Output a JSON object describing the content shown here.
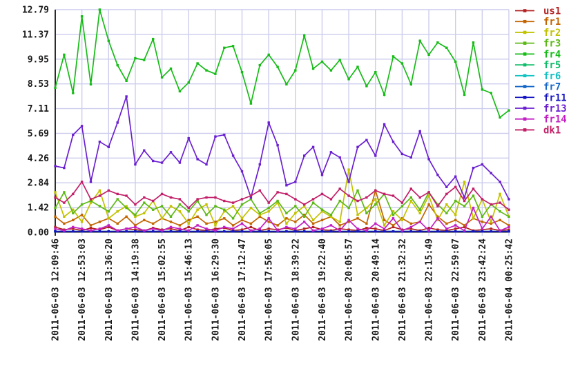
{
  "chart_data": {
    "type": "line",
    "title": "",
    "xlabel": "",
    "ylabel": "",
    "ylim": [
      0,
      12.79
    ],
    "grid": true,
    "legend_position": "right-outside",
    "points_per_series": 52,
    "y_tick_labels": [
      "0.00",
      "1.42",
      "2.84",
      "4.26",
      "5.69",
      "7.11",
      "8.53",
      "9.95",
      "11.37",
      "12.79"
    ],
    "x_labels": [
      "2011-06-03 12:09:46",
      "2011-06-03 12:53:03",
      "2011-06-03 13:36:20",
      "2011-06-03 14:19:38",
      "2011-06-03 15:02:55",
      "2011-06-03 15:46:13",
      "2011-06-03 16:29:30",
      "2011-06-03 17:12:47",
      "2011-06-03 17:56:05",
      "2011-06-03 18:39:22",
      "2011-06-03 19:22:40",
      "2011-06-03 20:05:57",
      "2011-06-03 20:49:14",
      "2011-06-03 21:32:32",
      "2011-06-03 22:15:49",
      "2011-06-03 22:59:07",
      "2011-06-03 23:42:24",
      "2011-06-04 00:25:42"
    ],
    "series": [
      {
        "name": "us1",
        "color": "#b22222",
        "values": [
          0.3,
          0.15,
          0.2,
          0.1,
          0.25,
          0.15,
          0.3,
          0.1,
          0.2,
          0.15,
          0.1,
          0.25,
          0.15,
          0.2,
          0.1,
          0.3,
          0.15,
          0.1,
          0.2,
          0.25,
          0.1,
          0.15,
          0.3,
          0.1,
          0.2,
          0.15,
          0.25,
          0.1,
          0.2,
          0.3,
          0.15,
          0.1,
          0.2,
          0.15,
          0.1,
          0.25,
          0.2,
          0.1,
          0.3,
          0.15,
          0.2,
          0.1,
          0.25,
          0.15,
          0.1,
          0.2,
          0.3,
          0.1,
          0.15,
          0.2,
          0.1,
          0.15
        ]
      },
      {
        "name": "fr1",
        "color": "#c26400",
        "values": [
          0.9,
          0.5,
          0.7,
          1.0,
          0.4,
          0.6,
          0.8,
          0.5,
          0.9,
          0.4,
          0.7,
          0.5,
          0.8,
          0.6,
          0.4,
          0.7,
          0.9,
          0.5,
          0.6,
          0.8,
          0.4,
          0.7,
          0.5,
          0.9,
          0.6,
          0.4,
          0.8,
          0.6,
          1.0,
          0.5,
          0.7,
          0.9,
          0.4,
          0.6,
          0.8,
          0.5,
          2.4,
          0.7,
          0.4,
          0.8,
          0.5,
          0.6,
          1.6,
          0.9,
          0.5,
          0.7,
          0.4,
          0.8,
          0.6,
          0.5,
          0.7,
          0.4
        ]
      },
      {
        "name": "fr2",
        "color": "#c2c200",
        "values": [
          2.3,
          0.9,
          1.3,
          0.6,
          1.7,
          2.4,
          0.8,
          1.2,
          1.5,
          0.9,
          1.1,
          1.8,
          0.8,
          1.5,
          1.2,
          0.5,
          1.3,
          1.6,
          0.4,
          1.2,
          1.5,
          0.8,
          1.4,
          1.0,
          1.2,
          1.7,
          0.5,
          1.1,
          1.5,
          0.7,
          1.2,
          0.9,
          0.6,
          3.6,
          1.0,
          1.4,
          1.9,
          0.4,
          1.2,
          0.7,
          1.8,
          1.1,
          2.1,
          0.7,
          1.6,
          1.0,
          2.9,
          0.8,
          1.9,
          0.6,
          2.2,
          0.9
        ]
      },
      {
        "name": "fr3",
        "color": "#5cb816",
        "values": [
          1.4,
          2.3,
          1.1,
          1.6,
          1.8,
          1.5,
          1.2,
          1.9,
          1.4,
          1.0,
          1.7,
          1.3,
          1.5,
          0.9,
          1.6,
          1.2,
          1.8,
          1.0,
          1.5,
          1.3,
          0.8,
          1.6,
          1.9,
          1.1,
          1.4,
          1.8,
          1.1,
          1.5,
          0.9,
          1.7,
          1.3,
          1.0,
          1.8,
          1.4,
          2.4,
          1.1,
          1.6,
          2.2,
          1.0,
          1.5,
          2.0,
          1.3,
          2.3,
          1.6,
          1.1,
          1.8,
          1.5,
          2.1,
          0.9,
          1.6,
          1.2,
          0.9
        ]
      },
      {
        "name": "fr4",
        "color": "#16bc16",
        "values": [
          8.3,
          10.2,
          8.0,
          12.4,
          8.5,
          12.79,
          11.0,
          9.6,
          8.7,
          10.0,
          9.9,
          11.1,
          8.9,
          9.4,
          8.1,
          8.6,
          9.7,
          9.3,
          9.1,
          10.6,
          10.7,
          9.2,
          7.4,
          9.6,
          10.2,
          9.5,
          8.5,
          9.3,
          11.3,
          9.4,
          9.8,
          9.3,
          9.9,
          8.8,
          9.5,
          8.4,
          9.2,
          7.9,
          10.1,
          9.7,
          8.5,
          11.0,
          10.2,
          10.9,
          10.6,
          9.8,
          7.9,
          10.9,
          8.2,
          8.0,
          6.6,
          7.0
        ]
      },
      {
        "name": "fr5",
        "color": "#0fbd68",
        "constant": 0.05
      },
      {
        "name": "fr6",
        "color": "#12c2c2",
        "constant": 0.05
      },
      {
        "name": "fr7",
        "color": "#1668c8",
        "constant": 0.05
      },
      {
        "name": "fr11",
        "color": "#1414c2",
        "constant": 0.05
      },
      {
        "name": "fr13",
        "color": "#6a1fd0",
        "values": [
          3.8,
          3.7,
          5.6,
          6.1,
          2.9,
          5.2,
          4.9,
          6.3,
          7.8,
          3.9,
          4.7,
          4.1,
          4.0,
          4.6,
          4.0,
          5.4,
          4.2,
          3.9,
          5.5,
          5.6,
          4.4,
          3.5,
          2.0,
          3.9,
          6.3,
          5.0,
          2.7,
          2.9,
          4.4,
          4.9,
          3.3,
          4.6,
          4.3,
          2.9,
          4.9,
          5.3,
          4.4,
          6.2,
          5.2,
          4.5,
          4.3,
          5.8,
          4.2,
          3.3,
          2.6,
          3.2,
          2.0,
          3.7,
          3.9,
          3.4,
          2.9,
          1.9
        ]
      },
      {
        "name": "fr14",
        "color": "#c21fc2",
        "values": [
          0.2,
          0.1,
          0.3,
          0.2,
          0.1,
          0.2,
          0.4,
          0.1,
          0.2,
          0.3,
          0.1,
          0.2,
          0.1,
          0.3,
          0.2,
          0.1,
          0.4,
          0.2,
          0.1,
          0.3,
          0.2,
          0.5,
          0.1,
          0.2,
          0.8,
          0.1,
          0.3,
          0.2,
          0.6,
          0.1,
          0.2,
          0.4,
          0.1,
          0.7,
          0.2,
          0.1,
          0.5,
          0.2,
          0.8,
          0.1,
          0.3,
          0.6,
          0.1,
          0.8,
          0.2,
          0.4,
          0.1,
          1.4,
          0.2,
          0.9,
          0.1,
          0.3
        ]
      },
      {
        "name": "dk1",
        "color": "#c21f68",
        "values": [
          2.0,
          1.7,
          2.2,
          2.9,
          1.9,
          2.1,
          2.4,
          2.2,
          2.1,
          1.6,
          2.0,
          1.8,
          2.2,
          2.0,
          1.9,
          1.4,
          1.9,
          2.0,
          2.0,
          1.8,
          1.7,
          1.9,
          2.1,
          2.4,
          1.7,
          2.3,
          2.2,
          1.9,
          1.6,
          1.9,
          2.2,
          1.9,
          2.5,
          2.1,
          1.8,
          2.0,
          2.4,
          2.2,
          2.1,
          1.7,
          2.5,
          2.0,
          2.3,
          1.5,
          2.2,
          2.6,
          1.8,
          2.5,
          1.9,
          1.6,
          1.7,
          1.3
        ]
      }
    ]
  },
  "colors": {
    "background": "#ffffff",
    "grid": "#ccccee",
    "axis": "#2b2b2b",
    "text": "#1a1a1a"
  }
}
